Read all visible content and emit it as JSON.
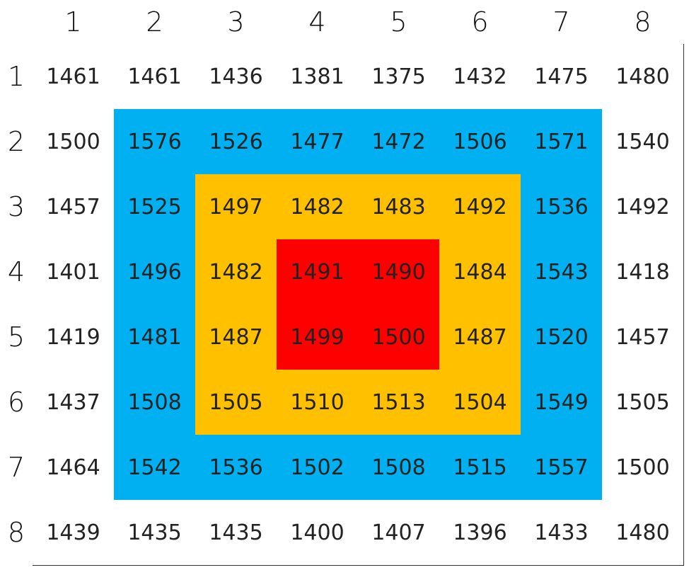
{
  "table": {
    "column_headers": [
      1,
      2,
      3,
      4,
      5,
      6,
      7,
      8
    ],
    "row_headers": [
      1,
      2,
      3,
      4,
      5,
      6,
      7,
      8
    ],
    "rows": [
      [
        1461,
        1461,
        1436,
        1381,
        1375,
        1432,
        1475,
        1480
      ],
      [
        1500,
        1576,
        1526,
        1477,
        1472,
        1506,
        1571,
        1540
      ],
      [
        1457,
        1525,
        1497,
        1482,
        1483,
        1492,
        1536,
        1492
      ],
      [
        1401,
        1496,
        1482,
        1491,
        1490,
        1484,
        1543,
        1418
      ],
      [
        1419,
        1481,
        1487,
        1499,
        1500,
        1487,
        1520,
        1457
      ],
      [
        1437,
        1508,
        1505,
        1510,
        1513,
        1504,
        1549,
        1505
      ],
      [
        1464,
        1542,
        1536,
        1502,
        1508,
        1515,
        1557,
        1500
      ],
      [
        1439,
        1435,
        1435,
        1400,
        1407,
        1396,
        1433,
        1480
      ]
    ]
  }
}
